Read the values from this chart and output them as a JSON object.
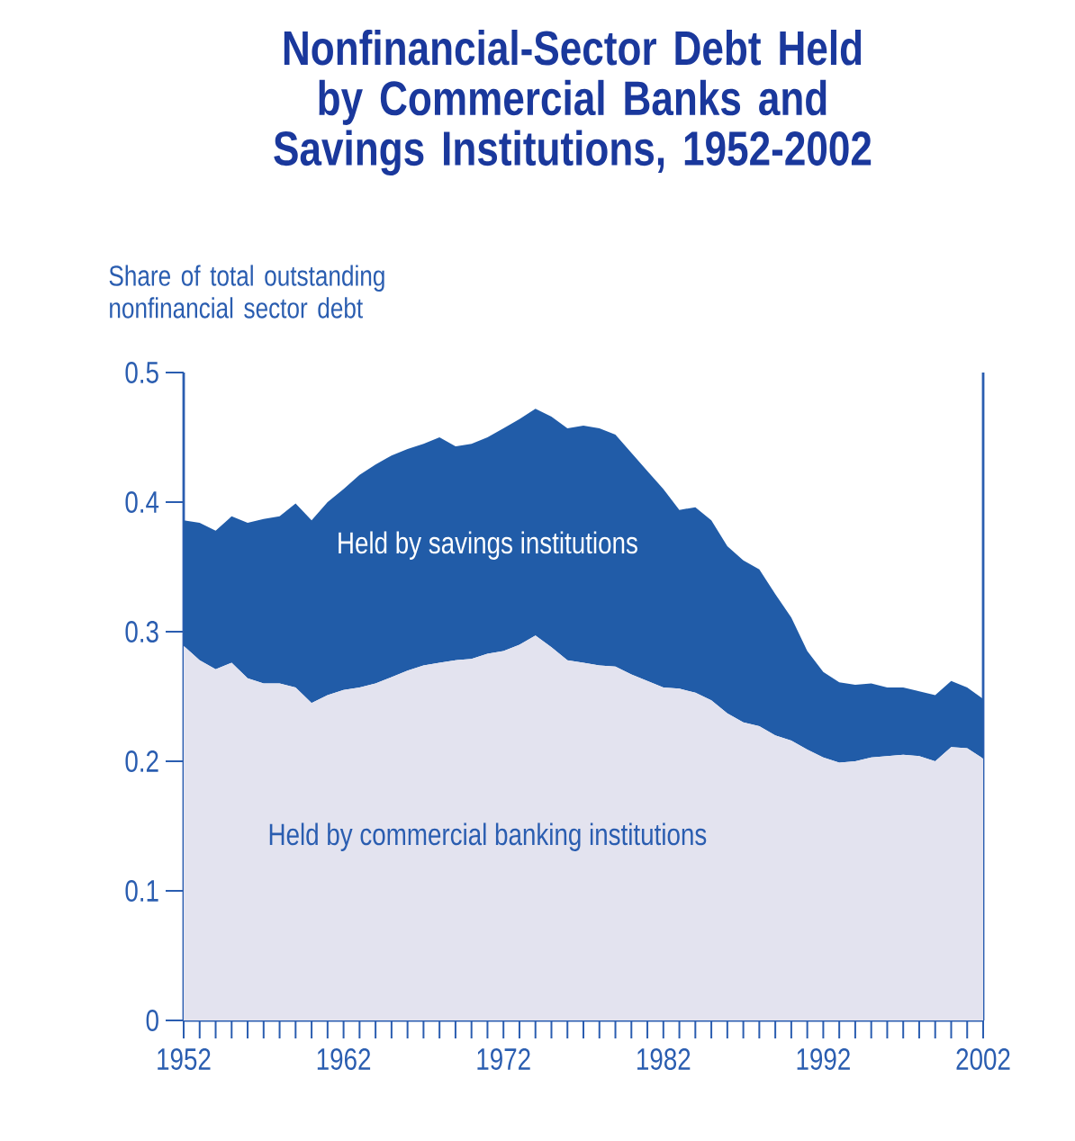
{
  "chart_data": {
    "type": "area",
    "stacked": true,
    "title": "Nonfinancial-Sector Debt Held by Commercial Banks and Savings Institutions, 1952-2002",
    "ylabel": "Share of total outstanding nonfinancial sector debt",
    "x": [
      1952,
      1953,
      1954,
      1955,
      1956,
      1957,
      1958,
      1959,
      1960,
      1961,
      1962,
      1963,
      1964,
      1965,
      1966,
      1967,
      1968,
      1969,
      1970,
      1971,
      1972,
      1973,
      1974,
      1975,
      1976,
      1977,
      1978,
      1979,
      1980,
      1981,
      1982,
      1983,
      1984,
      1985,
      1986,
      1987,
      1988,
      1989,
      1990,
      1991,
      1992,
      1993,
      1994,
      1995,
      1996,
      1997,
      1998,
      1999,
      2000,
      2001,
      2002
    ],
    "series": [
      {
        "name": "Held by commercial banking institutions",
        "color": "#e3e3ef",
        "values": [
          0.289,
          0.278,
          0.271,
          0.276,
          0.264,
          0.26,
          0.26,
          0.257,
          0.245,
          0.251,
          0.255,
          0.257,
          0.26,
          0.265,
          0.27,
          0.274,
          0.276,
          0.278,
          0.279,
          0.283,
          0.285,
          0.29,
          0.297,
          0.288,
          0.278,
          0.276,
          0.274,
          0.273,
          0.267,
          0.262,
          0.257,
          0.256,
          0.253,
          0.247,
          0.237,
          0.23,
          0.227,
          0.22,
          0.216,
          0.209,
          0.203,
          0.199,
          0.2,
          0.203,
          0.204,
          0.205,
          0.204,
          0.2,
          0.211,
          0.21,
          0.202
        ]
      },
      {
        "name": "Held by savings institutions",
        "color": "#215ca8",
        "values": [
          0.097,
          0.106,
          0.107,
          0.113,
          0.12,
          0.127,
          0.129,
          0.142,
          0.141,
          0.149,
          0.155,
          0.164,
          0.169,
          0.171,
          0.171,
          0.171,
          0.174,
          0.165,
          0.166,
          0.167,
          0.172,
          0.174,
          0.175,
          0.178,
          0.179,
          0.183,
          0.183,
          0.179,
          0.171,
          0.162,
          0.153,
          0.138,
          0.143,
          0.139,
          0.129,
          0.125,
          0.121,
          0.109,
          0.095,
          0.076,
          0.066,
          0.062,
          0.059,
          0.057,
          0.053,
          0.052,
          0.05,
          0.051,
          0.051,
          0.047,
          0.046
        ]
      }
    ],
    "xlim": [
      1952,
      2002
    ],
    "xticks": [
      1952,
      {
        "value": 1953,
        "label": null
      },
      {
        "value": 1954,
        "label": null
      },
      {
        "value": 1955,
        "label": null
      },
      {
        "value": 1956,
        "label": null
      },
      {
        "value": 1957,
        "label": null
      },
      {
        "value": 1958,
        "label": null
      },
      {
        "value": 1959,
        "label": null
      },
      {
        "value": 1960,
        "label": null
      },
      {
        "value": 1961,
        "label": null
      },
      1962,
      {
        "value": 1963,
        "label": null
      },
      {
        "value": 1964,
        "label": null
      },
      {
        "value": 1965,
        "label": null
      },
      {
        "value": 1966,
        "label": null
      },
      {
        "value": 1967,
        "label": null
      },
      {
        "value": 1968,
        "label": null
      },
      {
        "value": 1969,
        "label": null
      },
      {
        "value": 1970,
        "label": null
      },
      {
        "value": 1971,
        "label": null
      },
      1972,
      {
        "value": 1973,
        "label": null
      },
      {
        "value": 1974,
        "label": null
      },
      {
        "value": 1975,
        "label": null
      },
      {
        "value": 1976,
        "label": null
      },
      {
        "value": 1977,
        "label": null
      },
      {
        "value": 1978,
        "label": null
      },
      {
        "value": 1979,
        "label": null
      },
      {
        "value": 1980,
        "label": null
      },
      {
        "value": 1981,
        "label": null
      },
      1982,
      {
        "value": 1983,
        "label": null
      },
      {
        "value": 1984,
        "label": null
      },
      {
        "value": 1985,
        "label": null
      },
      {
        "value": 1986,
        "label": null
      },
      {
        "value": 1987,
        "label": null
      },
      {
        "value": 1988,
        "label": null
      },
      {
        "value": 1989,
        "label": null
      },
      {
        "value": 1990,
        "label": null
      },
      {
        "value": 1991,
        "label": null
      },
      1992,
      {
        "value": 1993,
        "label": null
      },
      {
        "value": 1994,
        "label": null
      },
      {
        "value": 1995,
        "label": null
      },
      {
        "value": 1996,
        "label": null
      },
      {
        "value": 1997,
        "label": null
      },
      {
        "value": 1998,
        "label": null
      },
      {
        "value": 1999,
        "label": null
      },
      {
        "value": 2000,
        "label": null
      },
      {
        "value": 2001,
        "label": null
      },
      2002
    ],
    "ylim": [
      0,
      0.5
    ],
    "yticks": [
      0,
      0.1,
      0.2,
      0.3,
      0.4,
      0.5
    ]
  }
}
